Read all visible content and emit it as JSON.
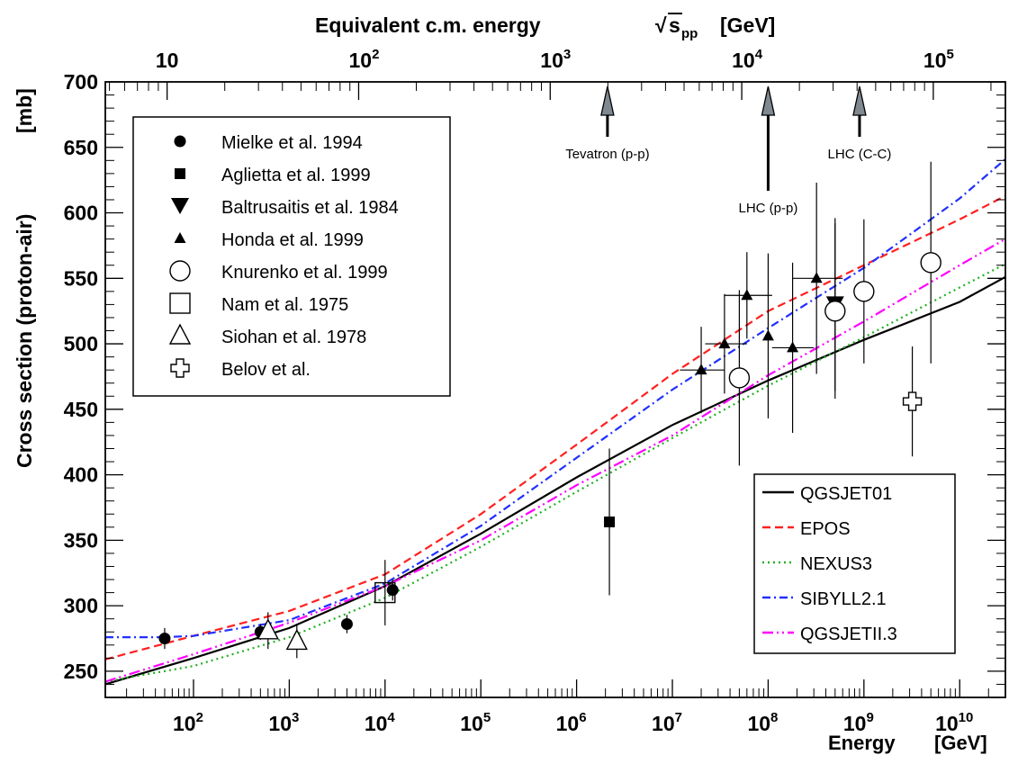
{
  "chart_data": {
    "type": "scatter",
    "xlabel": "Energy",
    "xunit": "[GeV]",
    "ylabel": "Cross section (proton-air)",
    "yunit": "[mb]",
    "top_axis_label": "Equivalent c.m. energy",
    "top_axis_sqrt": "s",
    "top_axis_sub": "pp",
    "top_axis_unit": "[GeV]",
    "x_scale": "log",
    "xlim": [
      12,
      30000000000.0
    ],
    "ylim": [
      230,
      700
    ],
    "y_ticks": [
      250,
      300,
      350,
      400,
      450,
      500,
      550,
      600,
      650,
      700
    ],
    "x_tick_exponents": [
      2,
      3,
      4,
      5,
      6,
      7,
      8,
      9,
      10
    ],
    "top_ticks": [
      {
        "energy": 53,
        "label": "10",
        "exp": ""
      },
      {
        "energy": 5300,
        "label": "10",
        "exp": "2"
      },
      {
        "energy": 530000,
        "label": "10",
        "exp": "3"
      },
      {
        "energy": 53000000,
        "label": "10",
        "exp": "4"
      },
      {
        "energy": 5300000000,
        "label": "10",
        "exp": "5"
      }
    ],
    "markers": [
      {
        "label": "Tevatron (p-p)",
        "energy": 2100000.0
      },
      {
        "label": "LHC (p-p)",
        "energy": 100000000.0
      },
      {
        "label": "LHC (C-C)",
        "energy": 900000000.0
      }
    ],
    "legend_points_position": "top-left",
    "legend_models_position": "bottom-right",
    "models": [
      {
        "name": "QGSJET01",
        "color": "#000000",
        "dash": "solid",
        "x": [
          12,
          100,
          1000,
          10000,
          100000,
          1000000,
          10000000,
          100000000,
          1000000000,
          10000000000,
          30000000000
        ],
        "y": [
          240,
          260,
          283,
          315,
          355,
          398,
          438,
          472,
          503,
          532,
          551
        ]
      },
      {
        "name": "EPOS",
        "color": "#ff2020",
        "dash": "dashed",
        "x": [
          12,
          100,
          1000,
          10000,
          100000,
          1000000,
          10000000,
          100000000,
          1000000000,
          10000000000,
          30000000000
        ],
        "y": [
          259,
          277,
          296,
          324,
          370,
          423,
          477,
          525,
          560,
          595,
          613
        ]
      },
      {
        "name": "NEXUS3",
        "color": "#20b020",
        "dash": "dotted",
        "x": [
          12,
          100,
          1000,
          10000,
          100000,
          1000000,
          10000000,
          100000000,
          1000000000,
          10000000000,
          30000000000
        ],
        "y": [
          242,
          254,
          276,
          306,
          345,
          387,
          428,
          468,
          505,
          543,
          561
        ]
      },
      {
        "name": "SIBYLL2.1",
        "color": "#2030ff",
        "dash": "dashdot",
        "x": [
          12,
          50,
          100,
          1000,
          10000,
          100000,
          1000000,
          10000000,
          100000000,
          1000000000,
          10000000000,
          30000000000
        ],
        "y": [
          276,
          276,
          277,
          289,
          317,
          361,
          413,
          465,
          512,
          558,
          611,
          641
        ]
      },
      {
        "name": "QGSJETII.3",
        "color": "#ff00ff",
        "dash": "dashdotdot",
        "x": [
          12,
          100,
          1000,
          10000,
          100000,
          1000000,
          10000000,
          100000000,
          1000000000,
          10000000000,
          30000000000
        ],
        "y": [
          242,
          263,
          287,
          315,
          350,
          392,
          430,
          476,
          517,
          560,
          580
        ]
      }
    ],
    "datasets": [
      {
        "name": "Mielke et al. 1994",
        "marker": "circle-filled",
        "points": [
          {
            "x": 50,
            "y": 275,
            "err": 8
          },
          {
            "x": 500,
            "y": 280,
            "err": 6
          },
          {
            "x": 4000,
            "y": 286,
            "err": 7
          },
          {
            "x": 12000,
            "y": 312,
            "err": 8
          }
        ]
      },
      {
        "name": "Aglietta et al. 1999",
        "marker": "square-filled",
        "points": [
          {
            "x": 2200000.0,
            "y": 364,
            "err": 56
          }
        ]
      },
      {
        "name": "Baltrusaitis et al. 1984",
        "marker": "triangle-down-filled",
        "points": [
          {
            "x": 500000000.0,
            "y": 530,
            "err": 66
          }
        ]
      },
      {
        "name": "Honda et al. 1999",
        "marker": "triangle-up-filled",
        "points": [
          {
            "x": 20000000.0,
            "y": 480,
            "err": 33,
            "xlo": 12000000.0,
            "xhi": 35000000.0
          },
          {
            "x": 35000000.0,
            "y": 500,
            "err": 38,
            "xlo": 22000000.0,
            "xhi": 60000000.0
          },
          {
            "x": 60000000.0,
            "y": 537,
            "err": 33,
            "xlo": 35000000.0,
            "xhi": 110000000.0
          },
          {
            "x": 100000000.0,
            "y": 506,
            "err": 63
          },
          {
            "x": 180000000.0,
            "y": 497,
            "err": 65,
            "xlo": 110000000.0,
            "xhi": 300000000.0
          },
          {
            "x": 320000000.0,
            "y": 550,
            "err": 73,
            "xlo": 180000000.0,
            "xhi": 600000000.0
          }
        ]
      },
      {
        "name": "Knurenko et al. 1999",
        "marker": "circle-open",
        "points": [
          {
            "x": 50000000.0,
            "y": 474,
            "err": 67
          },
          {
            "x": 500000000.0,
            "y": 525,
            "err": 67
          },
          {
            "x": 1000000000.0,
            "y": 540,
            "err": 55
          },
          {
            "x": 5000000000.0,
            "y": 562,
            "err": 77
          }
        ]
      },
      {
        "name": "Nam et al. 1975",
        "marker": "square-open",
        "points": [
          {
            "x": 10000,
            "y": 310,
            "err": 25
          }
        ]
      },
      {
        "name": "Siohan et al. 1978",
        "marker": "triangle-up-open",
        "points": [
          {
            "x": 600,
            "y": 281,
            "err": 14
          },
          {
            "x": 1200,
            "y": 273,
            "err": 13
          }
        ]
      },
      {
        "name": "Belov et al.",
        "marker": "cross-open",
        "points": [
          {
            "x": 3200000000.0,
            "y": 456,
            "err": 42
          }
        ]
      }
    ]
  }
}
